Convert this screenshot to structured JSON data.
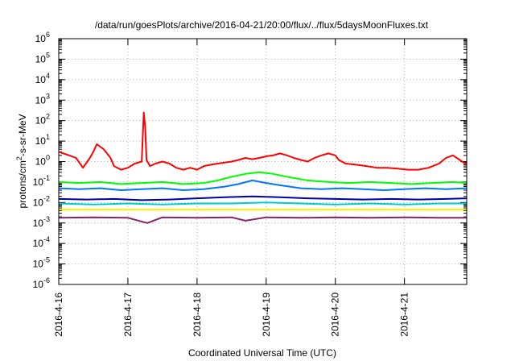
{
  "chart_data": {
    "type": "line",
    "title": "/data/run/goesPlots/archive/2016-04-21/20:00/flux/../flux/5daysMoonFluxes.txt",
    "xlabel": "Coordinated Universal Time (UTC)",
    "ylabel": "protons/cm²-s-sr-MeV",
    "ylabel_parts": {
      "pre": "protons/cm",
      "sup": "2",
      "post": "-s-sr-MeV"
    },
    "y_scale": "log",
    "ylim_exp": [
      -6,
      6
    ],
    "y_ticks": [
      {
        "base": "10",
        "exp": "-6",
        "v": -6
      },
      {
        "base": "10",
        "exp": "-5",
        "v": -5
      },
      {
        "base": "10",
        "exp": "-4",
        "v": -4
      },
      {
        "base": "10",
        "exp": "-3",
        "v": -3
      },
      {
        "base": "10",
        "exp": "-2",
        "v": -2
      },
      {
        "base": "10",
        "exp": "-1",
        "v": -1
      },
      {
        "base": "10",
        "exp": "0",
        "v": 0
      },
      {
        "base": "10",
        "exp": "1",
        "v": 1
      },
      {
        "base": "10",
        "exp": "2",
        "v": 2
      },
      {
        "base": "10",
        "exp": "3",
        "v": 3
      },
      {
        "base": "10",
        "exp": "4",
        "v": 4
      },
      {
        "base": "10",
        "exp": "5",
        "v": 5
      },
      {
        "base": "10",
        "exp": "6",
        "v": 6
      }
    ],
    "x_range_days": [
      0,
      5.9
    ],
    "x_ticks": [
      {
        "label": "2016-4-16",
        "day": 0
      },
      {
        "label": "2016-4-17",
        "day": 1
      },
      {
        "label": "2016-4-18",
        "day": 2
      },
      {
        "label": "2016-4-19",
        "day": 3
      },
      {
        "label": "2016-4-20",
        "day": 4
      },
      {
        "label": "2016-4-21",
        "day": 5
      }
    ],
    "grid": true,
    "series": [
      {
        "color": "#ff0000",
        "x": [
          0.0,
          0.15,
          0.25,
          0.35,
          0.45,
          0.5,
          0.55,
          0.65,
          0.75,
          0.8,
          0.9,
          1.0,
          1.1,
          1.2,
          1.23,
          1.25,
          1.27,
          1.32,
          1.4,
          1.5,
          1.6,
          1.7,
          1.8,
          1.9,
          2.0,
          2.1,
          2.2,
          2.3,
          2.4,
          2.5,
          2.6,
          2.7,
          2.8,
          2.9,
          3.0,
          3.1,
          3.2,
          3.3,
          3.4,
          3.5,
          3.6,
          3.7,
          3.8,
          3.9,
          4.0,
          4.05,
          4.15,
          4.3,
          4.45,
          4.6,
          4.75,
          4.9,
          5.05,
          5.2,
          5.35,
          5.5,
          5.6,
          5.7,
          5.8,
          5.9
        ],
        "y": [
          3.0,
          2.0,
          1.5,
          0.5,
          1.5,
          3.0,
          7.0,
          4.0,
          1.5,
          0.6,
          0.4,
          0.5,
          0.8,
          1.0,
          250,
          50,
          1.2,
          0.6,
          0.8,
          1.0,
          0.8,
          0.5,
          0.4,
          0.5,
          0.4,
          0.6,
          0.7,
          0.8,
          0.9,
          1.0,
          1.2,
          1.5,
          1.3,
          1.5,
          1.8,
          2.0,
          2.5,
          2.0,
          1.5,
          1.2,
          1.0,
          1.5,
          2.0,
          2.5,
          2.0,
          1.2,
          0.8,
          0.7,
          0.6,
          0.5,
          0.5,
          0.45,
          0.4,
          0.4,
          0.5,
          0.8,
          1.5,
          2.0,
          1.2,
          0.7
        ]
      },
      {
        "color": "#00ff00",
        "x": [
          0.0,
          0.3,
          0.6,
          0.9,
          1.2,
          1.5,
          1.8,
          2.1,
          2.3,
          2.5,
          2.7,
          2.9,
          3.1,
          3.3,
          3.6,
          3.9,
          4.2,
          4.5,
          4.8,
          5.1,
          5.4,
          5.7,
          5.9
        ],
        "y": [
          0.1,
          0.09,
          0.1,
          0.08,
          0.09,
          0.1,
          0.08,
          0.09,
          0.12,
          0.18,
          0.25,
          0.3,
          0.25,
          0.18,
          0.12,
          0.1,
          0.09,
          0.1,
          0.09,
          0.08,
          0.09,
          0.1,
          0.09
        ]
      },
      {
        "color": "#0077ff",
        "x": [
          0.0,
          0.3,
          0.6,
          0.9,
          1.2,
          1.5,
          1.8,
          2.1,
          2.4,
          2.6,
          2.8,
          3.0,
          3.2,
          3.5,
          3.8,
          4.1,
          4.4,
          4.7,
          5.0,
          5.3,
          5.6,
          5.9
        ],
        "y": [
          0.05,
          0.045,
          0.05,
          0.04,
          0.045,
          0.05,
          0.04,
          0.045,
          0.06,
          0.08,
          0.12,
          0.09,
          0.07,
          0.05,
          0.045,
          0.05,
          0.045,
          0.04,
          0.045,
          0.05,
          0.045,
          0.05
        ]
      },
      {
        "color": "#0000aa",
        "x": [
          0.0,
          0.4,
          0.8,
          1.2,
          1.6,
          2.0,
          2.4,
          2.8,
          3.2,
          3.6,
          4.0,
          4.4,
          4.8,
          5.2,
          5.6,
          5.9
        ],
        "y": [
          0.015,
          0.014,
          0.015,
          0.013,
          0.014,
          0.016,
          0.018,
          0.02,
          0.018,
          0.016,
          0.015,
          0.014,
          0.015,
          0.014,
          0.015,
          0.016
        ]
      },
      {
        "color": "#00cccc",
        "x": [
          0.0,
          0.5,
          1.0,
          1.5,
          2.0,
          2.5,
          3.0,
          3.5,
          4.0,
          4.5,
          5.0,
          5.5,
          5.9
        ],
        "y": [
          0.009,
          0.008,
          0.009,
          0.008,
          0.009,
          0.009,
          0.01,
          0.009,
          0.008,
          0.009,
          0.008,
          0.009,
          0.009
        ]
      },
      {
        "color": "#ffee00",
        "x": [
          0.0,
          0.5,
          1.0,
          1.5,
          2.0,
          2.5,
          3.0,
          3.5,
          4.0,
          4.5,
          5.0,
          5.5,
          5.9
        ],
        "y": [
          0.0045,
          0.0045,
          0.0045,
          0.0045,
          0.0045,
          0.0045,
          0.0045,
          0.0045,
          0.0045,
          0.0045,
          0.0045,
          0.0045,
          0.0045
        ]
      },
      {
        "color": "#882266",
        "x": [
          0.0,
          0.5,
          1.0,
          1.28,
          1.5,
          2.0,
          2.5,
          2.7,
          3.0,
          3.5,
          4.0,
          4.5,
          5.0,
          5.5,
          5.9
        ],
        "y": [
          0.0018,
          0.0019,
          0.0018,
          0.001,
          0.0019,
          0.0018,
          0.0019,
          0.0013,
          0.0019,
          0.0018,
          0.0019,
          0.0018,
          0.0019,
          0.0018,
          0.0018
        ]
      }
    ]
  }
}
